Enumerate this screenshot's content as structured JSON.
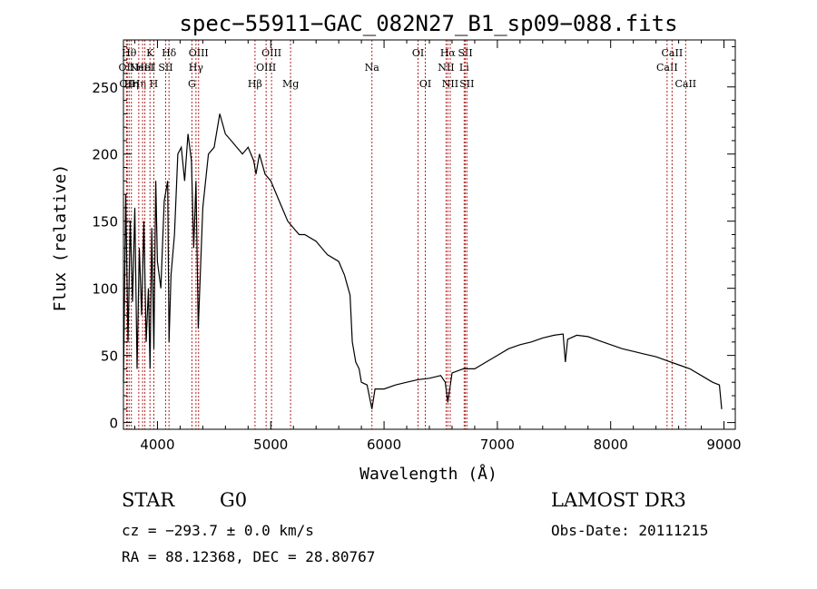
{
  "chart_data": {
    "type": "line",
    "title": "spec−55911−GAC_082N27_B1_sp09−088.fits",
    "xlabel": "Wavelength (Å)",
    "ylabel": "Flux (relative)",
    "xlim": [
      3700,
      9100
    ],
    "ylim": [
      -5,
      285
    ],
    "xticks": [
      4000,
      5000,
      6000,
      7000,
      8000,
      9000
    ],
    "yticks": [
      0,
      50,
      100,
      150,
      200,
      250
    ],
    "series": [
      {
        "name": "flux",
        "x": [
          3700,
          3720,
          3740,
          3760,
          3780,
          3800,
          3820,
          3840,
          3860,
          3880,
          3900,
          3920,
          3935,
          3950,
          3968,
          3985,
          4000,
          4030,
          4060,
          4090,
          4102,
          4120,
          4150,
          4180,
          4210,
          4240,
          4270,
          4300,
          4320,
          4340,
          4360,
          4400,
          4450,
          4500,
          4550,
          4600,
          4650,
          4700,
          4750,
          4800,
          4850,
          4870,
          4900,
          4950,
          5000,
          5050,
          5100,
          5150,
          5200,
          5250,
          5300,
          5400,
          5500,
          5600,
          5650,
          5700,
          5720,
          5750,
          5780,
          5800,
          5850,
          5893,
          5920,
          6000,
          6100,
          6200,
          6300,
          6400,
          6500,
          6540,
          6563,
          6600,
          6700,
          6800,
          6900,
          7000,
          7100,
          7200,
          7300,
          7400,
          7500,
          7580,
          7600,
          7620,
          7700,
          7800,
          7900,
          8000,
          8100,
          8200,
          8300,
          8400,
          8500,
          8600,
          8700,
          8800,
          8900,
          8960,
          8980
        ],
        "y": [
          30,
          170,
          60,
          150,
          90,
          160,
          40,
          130,
          80,
          150,
          60,
          100,
          40,
          145,
          55,
          180,
          120,
          100,
          165,
          180,
          60,
          110,
          140,
          200,
          205,
          180,
          215,
          195,
          130,
          180,
          70,
          160,
          200,
          205,
          230,
          215,
          210,
          205,
          200,
          205,
          195,
          185,
          200,
          185,
          180,
          170,
          160,
          150,
          145,
          140,
          140,
          135,
          125,
          120,
          110,
          95,
          60,
          45,
          40,
          30,
          28,
          10,
          25,
          25,
          28,
          30,
          32,
          33,
          35,
          30,
          15,
          37,
          40,
          40,
          45,
          50,
          55,
          58,
          60,
          63,
          65,
          66,
          45,
          62,
          65,
          64,
          61,
          58,
          55,
          53,
          51,
          49,
          46,
          43,
          40,
          35,
          30,
          28,
          10
        ]
      }
    ],
    "lines": [
      {
        "x": 3727,
        "label": "OII",
        "row": 2
      },
      {
        "x": 3734,
        "label": "OII",
        "row": 3
      },
      {
        "x": 3750,
        "label": "Hθ",
        "row": 1
      },
      {
        "x": 3770,
        "label": "Hη",
        "row": 3
      },
      {
        "x": 3835,
        "label": "Hη",
        "row": 3
      },
      {
        "x": 3869,
        "label": "NeIII",
        "row": 2
      },
      {
        "x": 3889,
        "label": "HeI",
        "row": 2
      },
      {
        "x": 3934,
        "label": "K",
        "row": 1
      },
      {
        "x": 3968,
        "label": "H",
        "row": 3
      },
      {
        "x": 4072,
        "label": "SII",
        "row": 2
      },
      {
        "x": 4102,
        "label": "Hδ",
        "row": 1
      },
      {
        "x": 4304,
        "label": "G",
        "row": 3
      },
      {
        "x": 4340,
        "label": "Hγ",
        "row": 2
      },
      {
        "x": 4363,
        "label": "OIII",
        "row": 1
      },
      {
        "x": 4861,
        "label": "Hβ",
        "row": 3
      },
      {
        "x": 4959,
        "label": "OIII",
        "row": 2
      },
      {
        "x": 5007,
        "label": "OIII",
        "row": 1
      },
      {
        "x": 5175,
        "label": "Mg",
        "row": 3
      },
      {
        "x": 5893,
        "label": "Na",
        "row": 2
      },
      {
        "x": 6300,
        "label": "OI",
        "row": 1
      },
      {
        "x": 6364,
        "label": "OI",
        "row": 3
      },
      {
        "x": 6548,
        "label": "NII",
        "row": 2
      },
      {
        "x": 6563,
        "label": "Hα",
        "row": 1
      },
      {
        "x": 6584,
        "label": "NII",
        "row": 3
      },
      {
        "x": 6707,
        "label": "Li",
        "row": 2
      },
      {
        "x": 6717,
        "label": "SII",
        "row": 1
      },
      {
        "x": 6731,
        "label": "SII",
        "row": 3
      },
      {
        "x": 8498,
        "label": "CaII",
        "row": 2
      },
      {
        "x": 8542,
        "label": "CaII",
        "row": 1
      },
      {
        "x": 8662,
        "label": "CaII",
        "row": 3
      }
    ]
  },
  "info": {
    "class": "STAR",
    "subclass": "G0",
    "survey": "LAMOST DR3",
    "cz": "cz = −293.7 ± 0.0 km/s",
    "obs_date": "Obs-Date: 20111215",
    "radec": "RA =  88.12368, DEC =  28.80767"
  }
}
